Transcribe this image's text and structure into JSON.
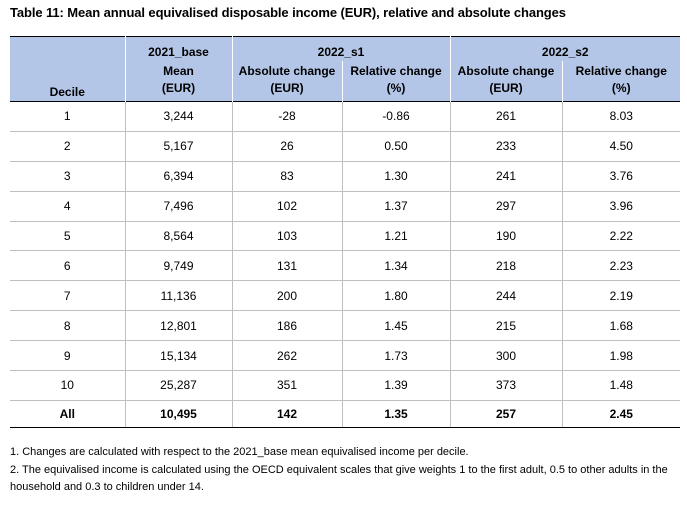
{
  "title": "Table 11: Mean annual equivalised disposable income (EUR), relative and absolute changes",
  "header": {
    "decile": "Decile",
    "base_group": "2021_base",
    "s1_group": "2022_s1",
    "s2_group": "2022_s2",
    "mean": "Mean",
    "eur_paren": "(EUR)",
    "abs_change": "Absolute change",
    "rel_change": "Relative change",
    "pct_paren": "(%)"
  },
  "rows": [
    [
      "1",
      "3,244",
      "-28",
      "-0.86",
      "261",
      "8.03"
    ],
    [
      "2",
      "5,167",
      "26",
      "0.50",
      "233",
      "4.50"
    ],
    [
      "3",
      "6,394",
      "83",
      "1.30",
      "241",
      "3.76"
    ],
    [
      "4",
      "7,496",
      "102",
      "1.37",
      "297",
      "3.96"
    ],
    [
      "5",
      "8,564",
      "103",
      "1.21",
      "190",
      "2.22"
    ],
    [
      "6",
      "9,749",
      "131",
      "1.34",
      "218",
      "2.23"
    ],
    [
      "7",
      "11,136",
      "200",
      "1.80",
      "244",
      "2.19"
    ],
    [
      "8",
      "12,801",
      "186",
      "1.45",
      "215",
      "1.68"
    ],
    [
      "9",
      "15,134",
      "262",
      "1.73",
      "300",
      "1.98"
    ],
    [
      "10",
      "25,287",
      "351",
      "1.39",
      "373",
      "1.48"
    ]
  ],
  "total": [
    "All",
    "10,495",
    "142",
    "1.35",
    "257",
    "2.45"
  ],
  "notes": [
    "1. Changes are calculated with respect to the 2021_base mean equivalised income per decile.",
    "2. The equivalised income is calculated using the OECD equivalent scales that give weights 1 to the first adult, 0.5 to other adults in the household and 0.3 to children under 14."
  ]
}
